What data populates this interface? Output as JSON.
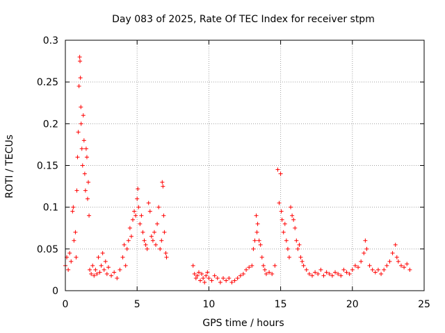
{
  "chart_data": {
    "type": "scatter",
    "title": "Day 083 of 2025, Rate Of TEC Index for receiver stpm",
    "xlabel": "GPS time / hours",
    "ylabel": "ROTI / TECUs",
    "xlim": [
      0,
      25
    ],
    "ylim": [
      0,
      0.3
    ],
    "x_ticks": [
      0,
      5,
      10,
      15,
      20,
      25
    ],
    "x_tick_labels": [
      "0",
      "5",
      "10",
      "15",
      "20",
      "25"
    ],
    "y_ticks": [
      0,
      0.05,
      0.1,
      0.15,
      0.2,
      0.25,
      0.3
    ],
    "y_tick_labels": [
      "0",
      "0.05",
      "0.1",
      "0.15",
      "0.2",
      "0.25",
      "0.3"
    ],
    "grid": true,
    "marker": "plus",
    "color": "#ff0000",
    "series": [
      {
        "name": "ROTI",
        "points": [
          [
            0.0,
            0.03
          ],
          [
            0.1,
            0.04
          ],
          [
            0.2,
            0.025
          ],
          [
            0.3,
            0.045
          ],
          [
            0.4,
            0.035
          ],
          [
            0.5,
            0.095
          ],
          [
            0.55,
            0.1
          ],
          [
            0.6,
            0.06
          ],
          [
            0.7,
            0.07
          ],
          [
            0.75,
            0.04
          ],
          [
            0.8,
            0.12
          ],
          [
            0.85,
            0.16
          ],
          [
            0.9,
            0.19
          ],
          [
            0.95,
            0.245
          ],
          [
            1.0,
            0.28
          ],
          [
            1.02,
            0.275
          ],
          [
            1.05,
            0.255
          ],
          [
            1.08,
            0.22
          ],
          [
            1.1,
            0.2
          ],
          [
            1.15,
            0.17
          ],
          [
            1.2,
            0.15
          ],
          [
            1.25,
            0.21
          ],
          [
            1.3,
            0.18
          ],
          [
            1.35,
            0.14
          ],
          [
            1.4,
            0.12
          ],
          [
            1.45,
            0.17
          ],
          [
            1.5,
            0.16
          ],
          [
            1.55,
            0.11
          ],
          [
            1.6,
            0.13
          ],
          [
            1.65,
            0.09
          ],
          [
            1.7,
            0.025
          ],
          [
            1.8,
            0.02
          ],
          [
            1.9,
            0.03
          ],
          [
            2.0,
            0.018
          ],
          [
            2.1,
            0.025
          ],
          [
            2.2,
            0.02
          ],
          [
            2.3,
            0.04
          ],
          [
            2.4,
            0.022
          ],
          [
            2.5,
            0.03
          ],
          [
            2.6,
            0.045
          ],
          [
            2.7,
            0.025
          ],
          [
            2.8,
            0.035
          ],
          [
            2.9,
            0.02
          ],
          [
            3.0,
            0.028
          ],
          [
            3.2,
            0.018
          ],
          [
            3.4,
            0.022
          ],
          [
            3.6,
            0.015
          ],
          [
            3.8,
            0.025
          ],
          [
            4.0,
            0.04
          ],
          [
            4.1,
            0.055
          ],
          [
            4.2,
            0.03
          ],
          [
            4.3,
            0.05
          ],
          [
            4.4,
            0.06
          ],
          [
            4.5,
            0.075
          ],
          [
            4.6,
            0.065
          ],
          [
            4.7,
            0.085
          ],
          [
            4.8,
            0.095
          ],
          [
            4.9,
            0.09
          ],
          [
            5.0,
            0.11
          ],
          [
            5.05,
            0.122
          ],
          [
            5.1,
            0.1
          ],
          [
            5.2,
            0.08
          ],
          [
            5.3,
            0.09
          ],
          [
            5.4,
            0.07
          ],
          [
            5.5,
            0.06
          ],
          [
            5.6,
            0.055
          ],
          [
            5.7,
            0.05
          ],
          [
            5.8,
            0.105
          ],
          [
            5.9,
            0.095
          ],
          [
            6.0,
            0.065
          ],
          [
            6.1,
            0.06
          ],
          [
            6.2,
            0.07
          ],
          [
            6.3,
            0.055
          ],
          [
            6.4,
            0.08
          ],
          [
            6.5,
            0.1
          ],
          [
            6.6,
            0.05
          ],
          [
            6.7,
            0.06
          ],
          [
            6.75,
            0.13
          ],
          [
            6.8,
            0.125
          ],
          [
            6.85,
            0.09
          ],
          [
            6.9,
            0.07
          ],
          [
            7.0,
            0.045
          ],
          [
            7.05,
            0.04
          ],
          [
            8.9,
            0.03
          ],
          [
            9.0,
            0.02
          ],
          [
            9.1,
            0.015
          ],
          [
            9.2,
            0.018
          ],
          [
            9.3,
            0.022
          ],
          [
            9.4,
            0.012
          ],
          [
            9.5,
            0.02
          ],
          [
            9.6,
            0.015
          ],
          [
            9.7,
            0.01
          ],
          [
            9.8,
            0.018
          ],
          [
            9.9,
            0.022
          ],
          [
            10.0,
            0.015
          ],
          [
            10.2,
            0.012
          ],
          [
            10.4,
            0.018
          ],
          [
            10.6,
            0.015
          ],
          [
            10.8,
            0.01
          ],
          [
            11.0,
            0.015
          ],
          [
            11.2,
            0.012
          ],
          [
            11.4,
            0.015
          ],
          [
            11.6,
            0.01
          ],
          [
            11.8,
            0.012
          ],
          [
            12.0,
            0.015
          ],
          [
            12.2,
            0.018
          ],
          [
            12.4,
            0.02
          ],
          [
            12.6,
            0.025
          ],
          [
            12.8,
            0.028
          ],
          [
            13.0,
            0.03
          ],
          [
            13.1,
            0.05
          ],
          [
            13.2,
            0.06
          ],
          [
            13.3,
            0.09
          ],
          [
            13.35,
            0.07
          ],
          [
            13.4,
            0.08
          ],
          [
            13.5,
            0.06
          ],
          [
            13.6,
            0.055
          ],
          [
            13.7,
            0.04
          ],
          [
            13.8,
            0.03
          ],
          [
            13.9,
            0.025
          ],
          [
            14.0,
            0.02
          ],
          [
            14.2,
            0.022
          ],
          [
            14.4,
            0.02
          ],
          [
            14.6,
            0.03
          ],
          [
            14.8,
            0.145
          ],
          [
            14.9,
            0.105
          ],
          [
            15.0,
            0.14
          ],
          [
            15.05,
            0.095
          ],
          [
            15.1,
            0.085
          ],
          [
            15.2,
            0.07
          ],
          [
            15.3,
            0.08
          ],
          [
            15.4,
            0.06
          ],
          [
            15.5,
            0.05
          ],
          [
            15.6,
            0.04
          ],
          [
            15.7,
            0.1
          ],
          [
            15.8,
            0.09
          ],
          [
            15.9,
            0.085
          ],
          [
            16.0,
            0.075
          ],
          [
            16.1,
            0.06
          ],
          [
            16.2,
            0.05
          ],
          [
            16.3,
            0.055
          ],
          [
            16.4,
            0.04
          ],
          [
            16.5,
            0.035
          ],
          [
            16.6,
            0.03
          ],
          [
            16.8,
            0.025
          ],
          [
            17.0,
            0.02
          ],
          [
            17.2,
            0.018
          ],
          [
            17.4,
            0.022
          ],
          [
            17.6,
            0.02
          ],
          [
            17.8,
            0.025
          ],
          [
            18.0,
            0.018
          ],
          [
            18.2,
            0.022
          ],
          [
            18.4,
            0.02
          ],
          [
            18.6,
            0.018
          ],
          [
            18.8,
            0.022
          ],
          [
            19.0,
            0.02
          ],
          [
            19.2,
            0.018
          ],
          [
            19.4,
            0.025
          ],
          [
            19.6,
            0.022
          ],
          [
            19.8,
            0.02
          ],
          [
            20.0,
            0.025
          ],
          [
            20.2,
            0.03
          ],
          [
            20.4,
            0.028
          ],
          [
            20.6,
            0.035
          ],
          [
            20.8,
            0.045
          ],
          [
            20.9,
            0.06
          ],
          [
            21.0,
            0.05
          ],
          [
            21.2,
            0.03
          ],
          [
            21.4,
            0.025
          ],
          [
            21.6,
            0.022
          ],
          [
            21.8,
            0.025
          ],
          [
            22.0,
            0.02
          ],
          [
            22.2,
            0.025
          ],
          [
            22.4,
            0.03
          ],
          [
            22.6,
            0.035
          ],
          [
            22.8,
            0.045
          ],
          [
            23.0,
            0.055
          ],
          [
            23.1,
            0.04
          ],
          [
            23.2,
            0.035
          ],
          [
            23.4,
            0.03
          ],
          [
            23.6,
            0.028
          ],
          [
            23.8,
            0.032
          ],
          [
            24.0,
            0.025
          ]
        ]
      }
    ]
  }
}
